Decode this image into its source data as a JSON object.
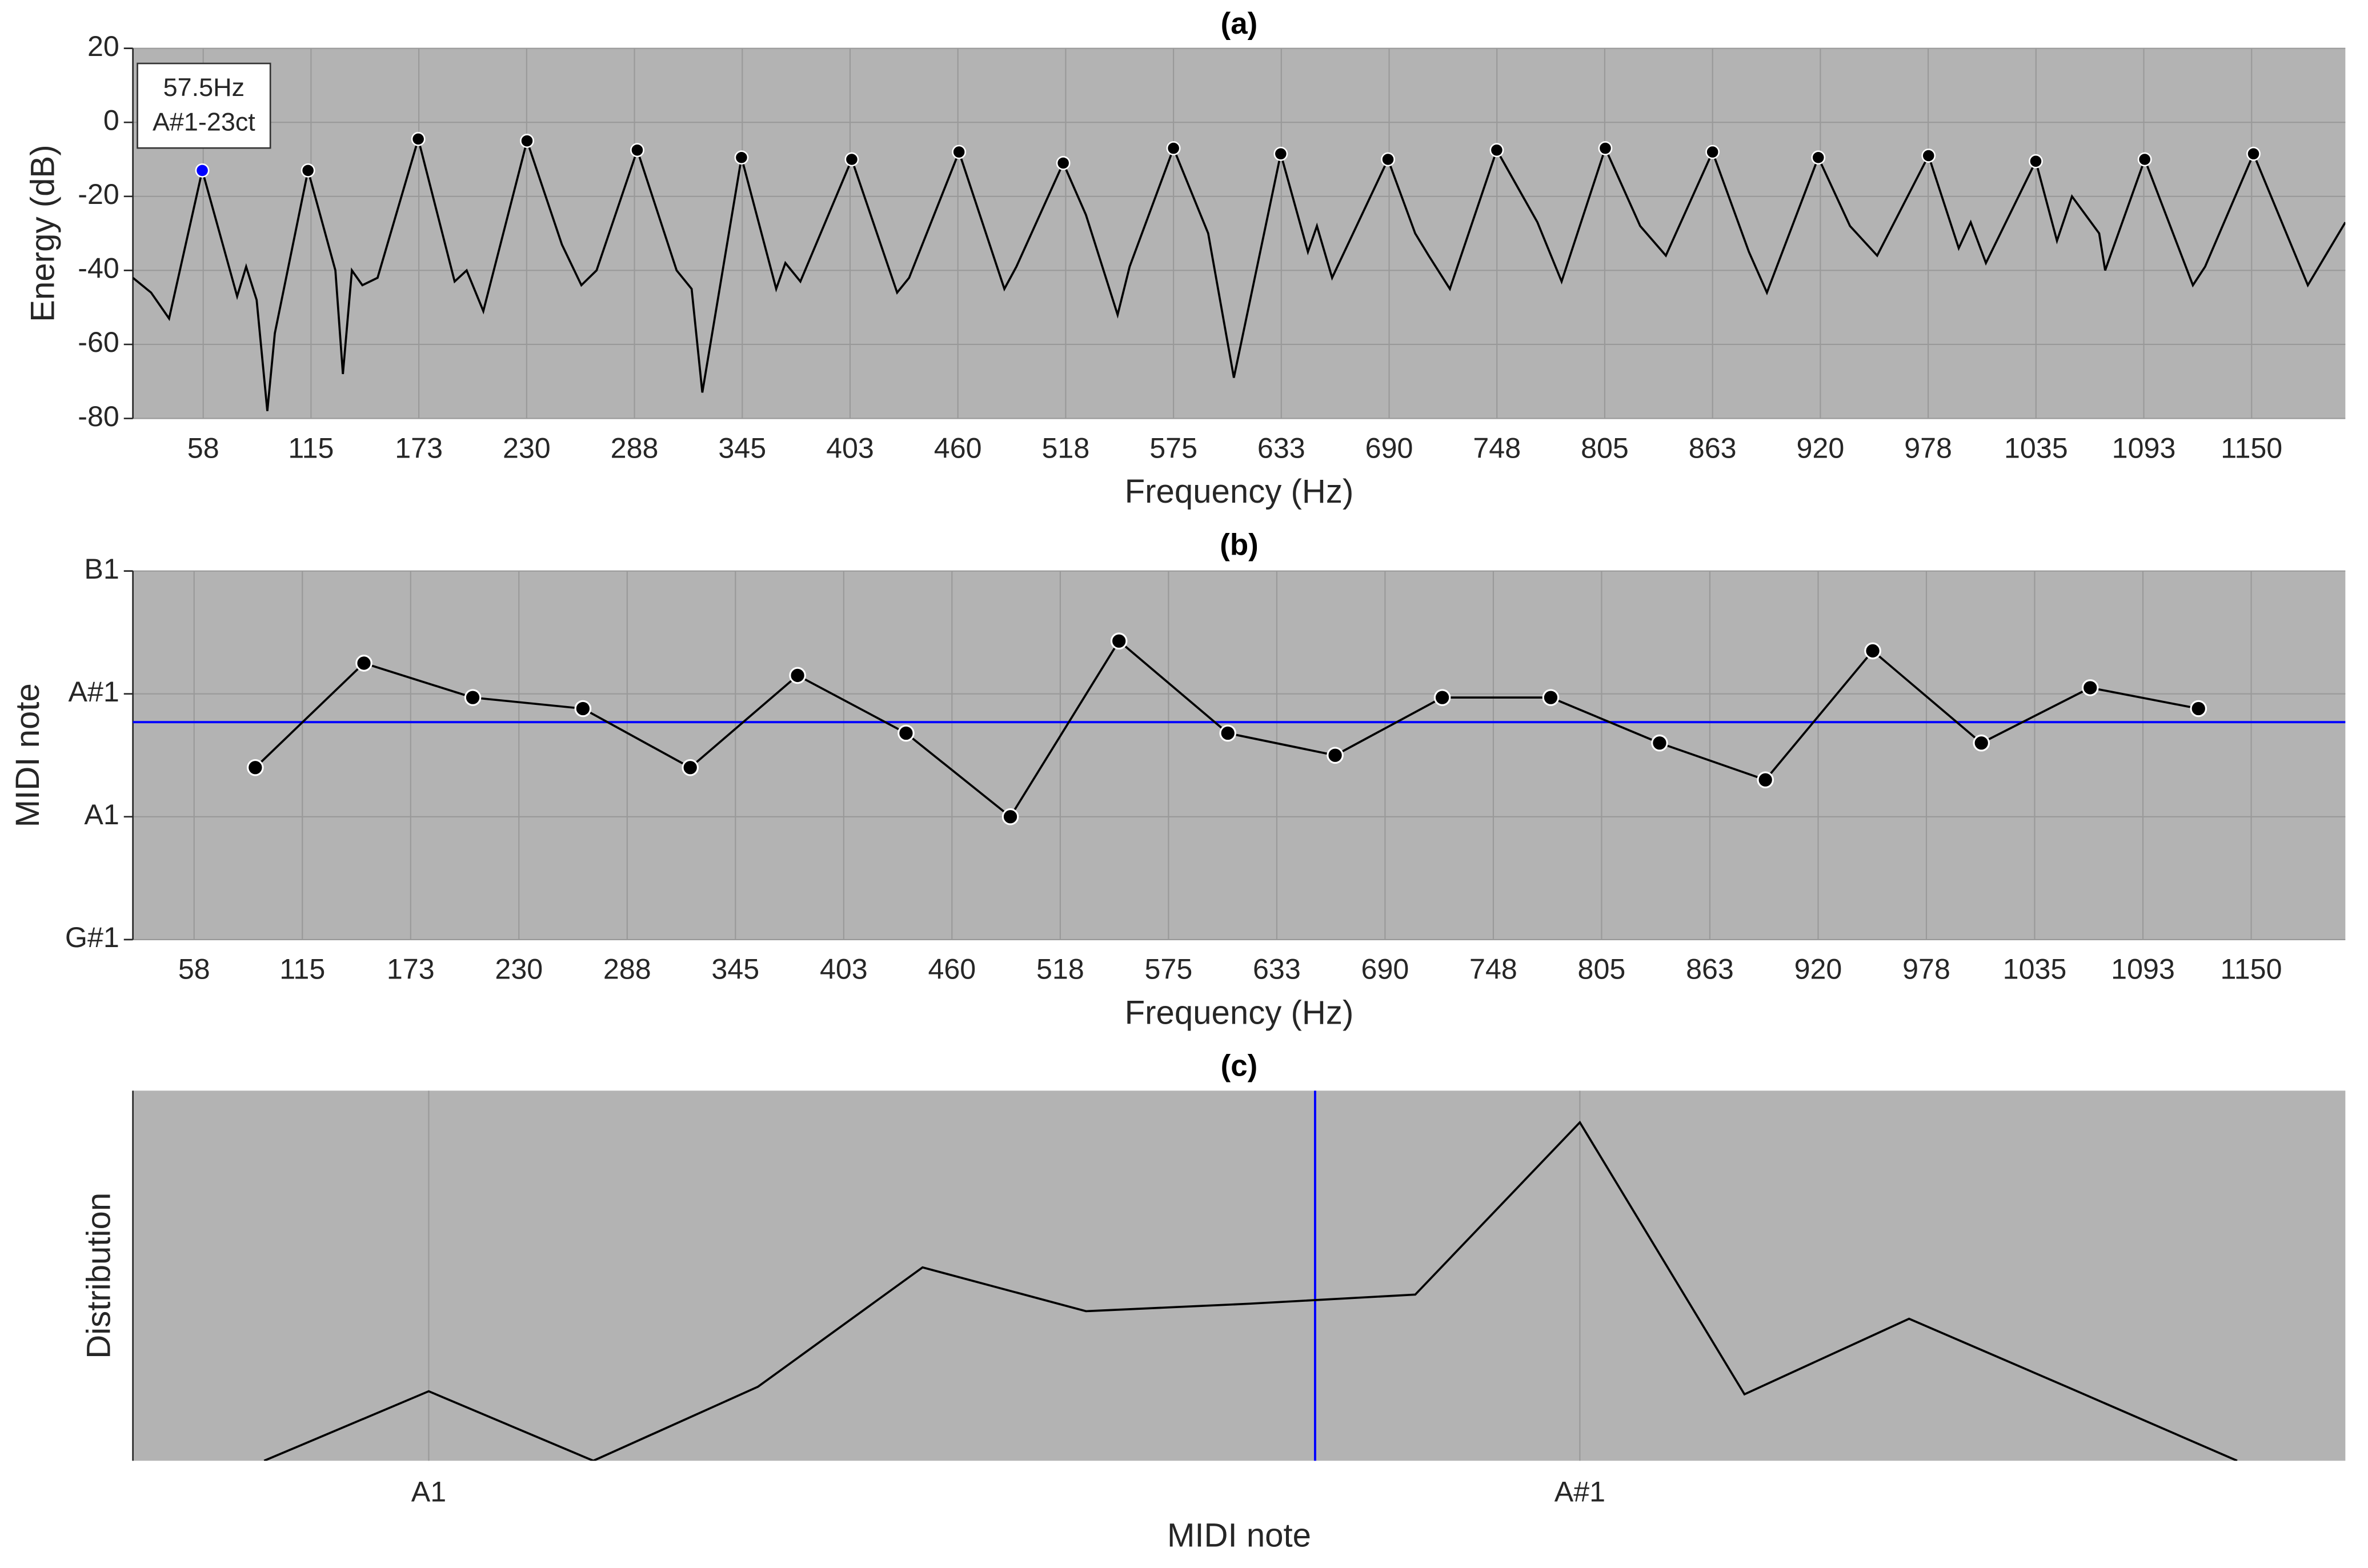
{
  "chart_data": [
    {
      "type": "line",
      "title": "(a)",
      "xlabel": "Frequency (Hz)",
      "ylabel": "Energy (dB)",
      "x": [
        20,
        29.7,
        39.3,
        57,
        75.6,
        80.4,
        86,
        91.7,
        95.7,
        113.4,
        128,
        132,
        136.8,
        142.4,
        150.5,
        172.2,
        191.6,
        198,
        206.9,
        230.2,
        248.8,
        259.2,
        267.3,
        289,
        310,
        318,
        323.7,
        344.6,
        363.1,
        368,
        376,
        403.4,
        427.6,
        434,
        460.6,
        484.8,
        491.2,
        516.2,
        528.3,
        545.2,
        551.6,
        575,
        593.5,
        607.2,
        632.2,
        646.7,
        651.5,
        659.6,
        689.4,
        703.9,
        711.1,
        722.4,
        747.4,
        769.1,
        782,
        805.3,
        823.9,
        837.6,
        862.5,
        881.9,
        891.5,
        918.9,
        935.8,
        950.3,
        977.7,
        993.8,
        1000.2,
        1008.3,
        1034.9,
        1046.2,
        1054.2,
        1068.7,
        1071.9,
        1093,
        1118.7,
        1125.2,
        1151,
        1180,
        1200
      ],
      "values": [
        -42,
        -46,
        -53,
        -13,
        -47,
        -39,
        -48,
        -78,
        -57,
        -13,
        -40,
        -68,
        -40,
        -44,
        -42,
        -4.5,
        -43,
        -40,
        -51,
        -5,
        -33,
        -44,
        -40,
        -7.5,
        -40,
        -45,
        -73,
        -9.5,
        -45,
        -38,
        -43,
        -10,
        -46,
        -42,
        -8,
        -45,
        -39,
        -11,
        -25,
        -52,
        -39,
        -7,
        -30,
        -69,
        -8.5,
        -35,
        -28,
        -42,
        -10,
        -30,
        -36,
        -45,
        -7.5,
        -27,
        -43,
        -7,
        -28,
        -36,
        -8,
        -35,
        -46,
        -9.5,
        -28,
        -36,
        -9,
        -34,
        -27,
        -38,
        -10.5,
        -32,
        -20,
        -30,
        -40,
        -10,
        -44,
        -39,
        -8.5,
        -44,
        -27
      ],
      "color": "#000000",
      "peaks": {
        "x": [
          57,
          113.4,
          172.2,
          230.2,
          289,
          344.6,
          403.4,
          460.6,
          516.2,
          575,
          632.2,
          689.4,
          747.4,
          805.3,
          862.5,
          918.9,
          977.7,
          1034.9,
          1093,
          1151
        ],
        "values": [
          -13,
          -13,
          -4.5,
          -5,
          -7.5,
          -9.5,
          -10,
          -8,
          -11,
          -7,
          -8.5,
          -10,
          -7.5,
          -7,
          -8,
          -9.5,
          -9,
          -10.5,
          -10,
          -8.5
        ],
        "colors": [
          "#0000ff",
          "#000000",
          "#000000",
          "#000000",
          "#000000",
          "#000000",
          "#000000",
          "#000000",
          "#000000",
          "#000000",
          "#000000",
          "#000000",
          "#000000",
          "#000000",
          "#000000",
          "#000000",
          "#000000",
          "#000000",
          "#000000",
          "#000000"
        ]
      },
      "annotation": [
        "57.5Hz",
        "A#1-23ct"
      ],
      "xlim": [
        20,
        1200
      ],
      "ylim": [
        -80,
        20
      ],
      "xticks": [
        {
          "value": 57.5,
          "label": "58"
        },
        115,
        {
          "value": 172.5,
          "label": "173"
        },
        230,
        {
          "value": 287.5,
          "label": "288"
        },
        345,
        {
          "value": 402.5,
          "label": "403"
        },
        460,
        {
          "value": 517.5,
          "label": "518"
        },
        575,
        {
          "value": 632.5,
          "label": "633"
        },
        690,
        {
          "value": 747.5,
          "label": "748"
        },
        805,
        {
          "value": 862.5,
          "label": "863"
        },
        920,
        {
          "value": 977.5,
          "label": "978"
        },
        1035,
        {
          "value": 1092.5,
          "label": "1093"
        },
        1150
      ],
      "yticks": [
        -80,
        -60,
        -40,
        -20,
        0,
        20
      ],
      "grid": true
    },
    {
      "type": "line",
      "title": "(b)",
      "xlabel": "Frequency (Hz)",
      "ylabel": "MIDI note",
      "x": [
        90,
        147.7,
        205.5,
        264,
        321,
        378,
        435.6,
        491,
        548.7,
        606.5,
        663.5,
        720.4,
        778,
        835.8,
        892,
        949,
        1006.7,
        1064.5,
        1122
      ],
      "values": [
        33.4,
        34.25,
        33.97,
        33.88,
        33.4,
        34.15,
        33.68,
        33.0,
        34.43,
        33.68,
        33.5,
        33.97,
        33.97,
        33.6,
        33.3,
        34.35,
        33.6,
        34.05,
        33.88
      ],
      "color": "#000000",
      "markers": true,
      "reference": {
        "value": 33.77,
        "color": "#0000ff",
        "orientation": "horizontal"
      },
      "xlim": [
        25,
        1200
      ],
      "ylim": [
        32,
        35
      ],
      "xticks": [
        {
          "value": 57.5,
          "label": "58"
        },
        115,
        {
          "value": 172.5,
          "label": "173"
        },
        230,
        {
          "value": 287.5,
          "label": "288"
        },
        345,
        {
          "value": 402.5,
          "label": "403"
        },
        460,
        {
          "value": 517.5,
          "label": "518"
        },
        575,
        {
          "value": 632.5,
          "label": "633"
        },
        690,
        {
          "value": 747.5,
          "label": "748"
        },
        805,
        {
          "value": 862.5,
          "label": "863"
        },
        920,
        {
          "value": 977.5,
          "label": "978"
        },
        1035,
        {
          "value": 1092.5,
          "label": "1093"
        },
        1150
      ],
      "yticks": [
        {
          "value": 32,
          "label": "G#1"
        },
        {
          "value": 33,
          "label": "A1"
        },
        {
          "value": 34,
          "label": "A#1"
        },
        {
          "value": 35,
          "label": "B1"
        }
      ],
      "grid": true
    },
    {
      "type": "line",
      "title": "(c)",
      "xlabel": "MIDI note",
      "ylabel": "Distribution",
      "x": [
        32.857,
        33.0,
        33.143,
        33.286,
        33.429,
        33.571,
        33.714,
        33.857,
        34.0,
        34.143,
        34.286,
        34.429,
        34.571
      ],
      "values": [
        0,
        46,
        0,
        49,
        128,
        99,
        104,
        110,
        224,
        44,
        94,
        47,
        0
      ],
      "color": "#000000",
      "reference": {
        "value": 33.77,
        "color": "#0000ff",
        "orientation": "vertical"
      },
      "xlim": [
        32.743,
        34.665
      ],
      "ylim": [
        0,
        245
      ],
      "xticks": [
        {
          "value": 33,
          "label": "A1"
        },
        {
          "value": 34,
          "label": "A#1"
        }
      ],
      "grid": true
    }
  ]
}
